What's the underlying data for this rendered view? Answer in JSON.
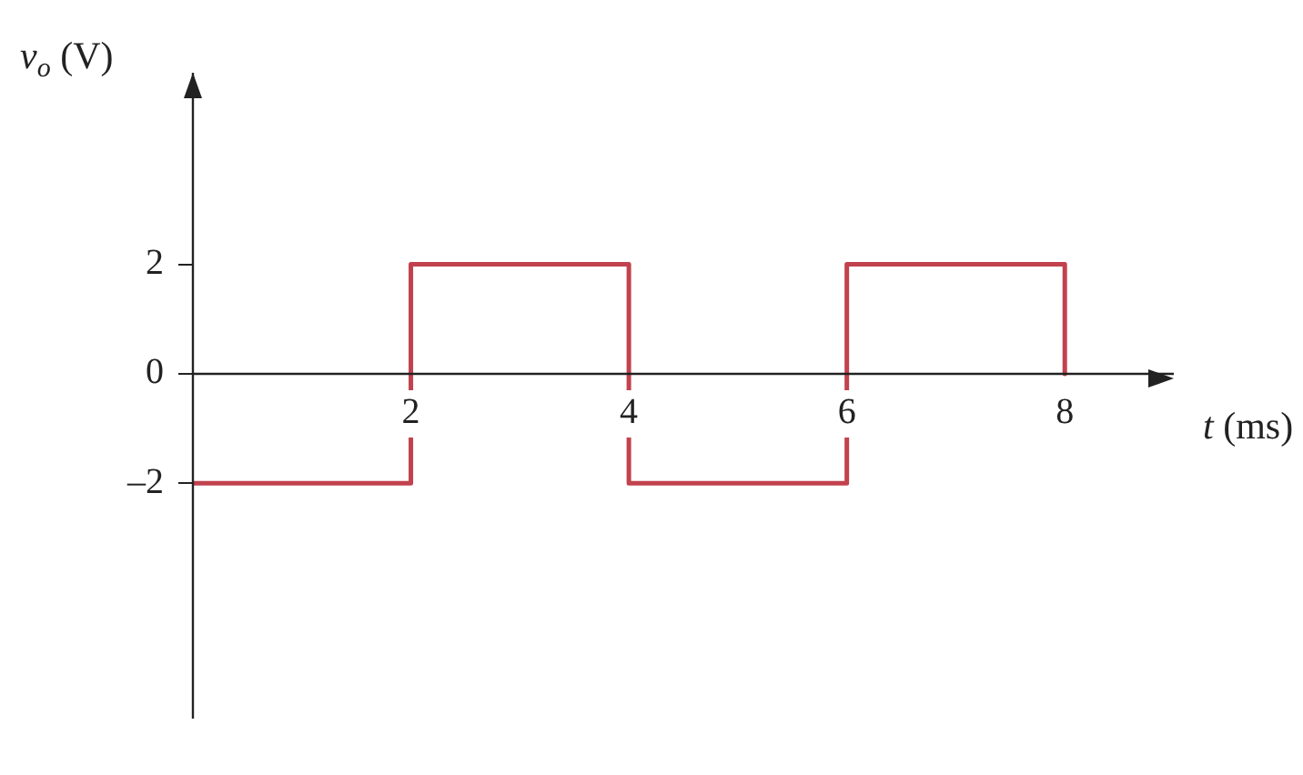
{
  "chart_data": {
    "type": "line",
    "xlabel": "t (ms)",
    "ylabel": "v$_{o}$ (V)",
    "x": [
      0,
      2,
      2,
      4,
      4,
      6,
      6,
      8,
      8
    ],
    "series": [
      {
        "color": "#c1424e",
        "values": [
          -2,
          -2,
          2,
          2,
          -2,
          -2,
          2,
          2,
          0
        ]
      }
    ],
    "xlim": [
      0,
      9
    ],
    "ylim": [
      -6.3,
      5.5
    ],
    "xticks": [
      2,
      4,
      6,
      8
    ],
    "yticks": [
      {
        "value": -2,
        "label": "–2"
      },
      0,
      2
    ],
    "grid": false,
    "legend": false,
    "marker": "none",
    "line_style": "solid"
  }
}
